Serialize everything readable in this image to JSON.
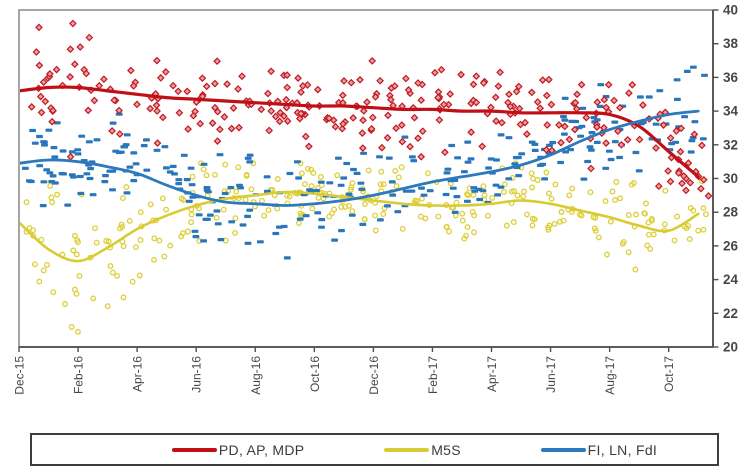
{
  "chart_data": {
    "type": "scatter",
    "description": "Italian polling intentions scatter with smoothed trend lines, Dec-2015 to Nov-2017",
    "x_tick_labels": [
      "Dec-15",
      "Feb-16",
      "Apr-16",
      "Jun-16",
      "Aug-16",
      "Oct-16",
      "Dec-16",
      "Feb-17",
      "Apr-17",
      "Jun-17",
      "Aug-17",
      "Oct-17"
    ],
    "x_tick_months": [
      0,
      2,
      4,
      6,
      8,
      10,
      12,
      14,
      16,
      18,
      20,
      22
    ],
    "x_range_months": [
      0,
      23.5
    ],
    "y_ticks": [
      20,
      22,
      24,
      26,
      28,
      30,
      32,
      34,
      36,
      38,
      40
    ],
    "y_axis": {
      "min": 20,
      "max": 40,
      "step": 2,
      "side": "right"
    },
    "grid": false,
    "legend_position": "bottom",
    "months_axis_note": "monthly trend values run Dec-15 through Nov-17",
    "series": [
      {
        "name": "PD, AP, MDP",
        "marker": "open-diamond",
        "color_line": "#c00f16",
        "color_marker_stroke": "#c2181f",
        "color_marker_fill": "#eaa0a3",
        "n_points": 290,
        "seed": 11,
        "trend_monthly": [
          35.2,
          35.4,
          35.4,
          35.2,
          35.0,
          34.8,
          34.7,
          34.6,
          34.5,
          34.4,
          34.3,
          34.3,
          34.2,
          34.1,
          34.1,
          34.0,
          34.0,
          33.9,
          33.9,
          33.9,
          33.8,
          33.1,
          31.6,
          30.1
        ],
        "scatter_sd_monthly": [
          1.7,
          1.6,
          1.5,
          1.4,
          1.3,
          1.2,
          1.1,
          1.1,
          1.0,
          1.0,
          1.1,
          1.1,
          1.1,
          1.1,
          1.2,
          1.2,
          1.2,
          1.2,
          1.2,
          1.3,
          1.3,
          1.3,
          1.2,
          1.1
        ],
        "value_clamp": [
          28.8,
          39.2
        ]
      },
      {
        "name": "M5S",
        "marker": "open-circle",
        "color_line": "#d8cb33",
        "color_marker_stroke": "#ddcf35",
        "color_marker_fill": "none",
        "n_points": 300,
        "seed": 23,
        "trend_monthly": [
          27.4,
          25.8,
          25.1,
          25.9,
          27.0,
          27.8,
          28.4,
          28.8,
          29.0,
          29.2,
          29.1,
          28.9,
          28.7,
          28.5,
          28.4,
          28.4,
          28.5,
          28.7,
          28.5,
          28.1,
          27.7,
          27.2,
          26.9,
          27.9
        ],
        "scatter_sd_monthly": [
          1.6,
          1.9,
          2.0,
          1.9,
          1.7,
          1.5,
          1.3,
          1.2,
          1.1,
          1.1,
          1.0,
          1.0,
          1.0,
          1.0,
          1.0,
          1.0,
          1.0,
          1.0,
          1.1,
          1.1,
          1.2,
          1.2,
          1.1,
          0.9
        ],
        "value_clamp": [
          20.9,
          30.9
        ]
      },
      {
        "name": "FI, LN, FdI",
        "marker": "dash",
        "color_line": "#2d79be",
        "color_marker_stroke": "#2a76ba",
        "color_marker_fill": "#2a76ba",
        "n_points": 280,
        "seed": 37,
        "trend_monthly": [
          30.9,
          31.1,
          31.0,
          30.7,
          30.3,
          29.6,
          29.0,
          28.6,
          28.5,
          28.4,
          28.5,
          28.7,
          29.0,
          29.4,
          29.8,
          30.1,
          30.4,
          30.8,
          31.4,
          32.2,
          32.9,
          33.4,
          33.8,
          34.0
        ],
        "scatter_sd_monthly": [
          1.2,
          1.2,
          1.3,
          1.5,
          1.6,
          1.6,
          1.6,
          1.5,
          1.5,
          1.4,
          1.3,
          1.2,
          1.1,
          1.1,
          1.0,
          1.0,
          1.0,
          1.1,
          1.1,
          1.2,
          1.3,
          1.4,
          1.4,
          1.3
        ],
        "value_clamp": [
          24.9,
          37.1
        ]
      }
    ],
    "frame_colors": {
      "top_left": "#8f8f8f",
      "axis": "#4f4f4f",
      "tick_text": "#474747"
    }
  }
}
